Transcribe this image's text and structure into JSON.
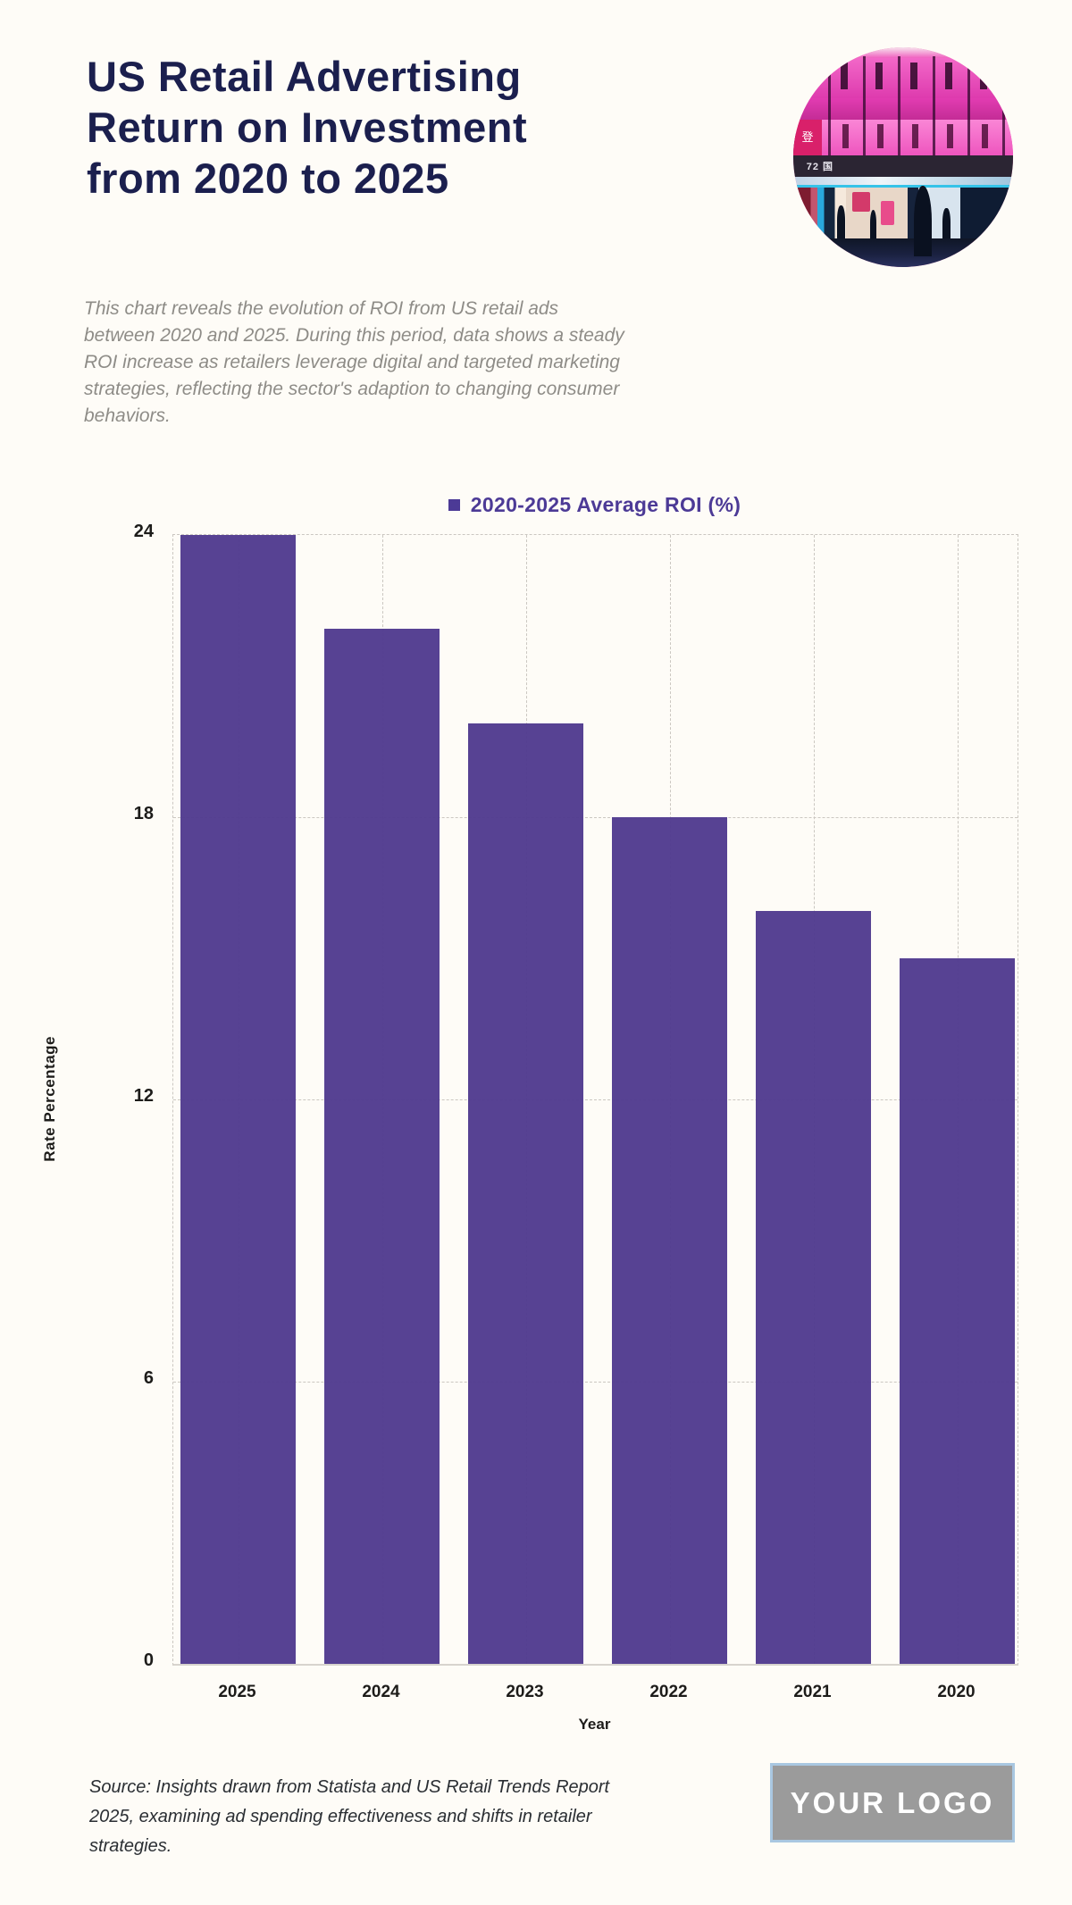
{
  "header": {
    "title_lines": [
      "US Retail Advertising",
      "Return on Investment",
      "from 2020 to 2025"
    ],
    "description": "This chart reveals the evolution of ROI from US retail ads between 2020 and 2025. During this period, data shows a steady ROI increase as retailers leverage digital and targeted marketing strategies, reflecting the sector's adaption to changing consumer behaviors."
  },
  "hero_image": {
    "description": "circular photo of a retail storefront at night lit with pink neon, mannequins in windows, shoppers below",
    "sign_text": "登",
    "band_text": "72 国"
  },
  "chart_data": {
    "type": "bar",
    "legend_label": "2020-2025 Average ROI (%)",
    "categories": [
      "2025",
      "2024",
      "2023",
      "2022",
      "2021",
      "2020"
    ],
    "values": [
      24,
      22,
      20,
      18,
      16,
      15
    ],
    "xlabel": "Year",
    "ylabel": "Rate Percentage",
    "yticks": [
      0,
      6,
      12,
      18,
      24
    ],
    "ylim": [
      0,
      24
    ],
    "bar_color": "#553F94",
    "legend_color": "#4C3A96",
    "grid": "dashed horizontal lines at ticks, dashed vertical lines at category centers and plot edges",
    "legend_position": "top center"
  },
  "footer": {
    "source": "Source: Insights drawn from Statista and US Retail Trends Report 2025, examining ad spending effectiveness and shifts in retailer strategies.",
    "logo_text": "YOUR LOGO"
  }
}
